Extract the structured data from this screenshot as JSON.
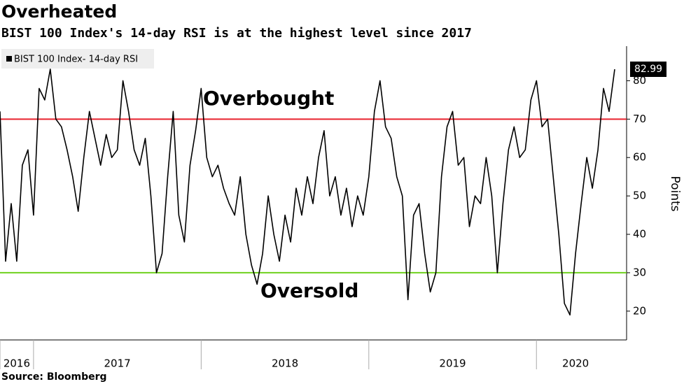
{
  "chart_data": {
    "type": "line",
    "title": "Overheated",
    "subtitle": "BIST 100 Index's 14-day RSI is at the highest level since  2017",
    "source": "Source: Bloomberg",
    "y_label": "Points",
    "categories": [
      "2016",
      null,
      null,
      null,
      null,
      null,
      "2017",
      null,
      null,
      null,
      null,
      null,
      null,
      null,
      null,
      null,
      null,
      null,
      null,
      null,
      null,
      null,
      null,
      null,
      null,
      null,
      null,
      null,
      null,
      null,
      null,
      null,
      null,
      null,
      null,
      null,
      "2018",
      null,
      null,
      null,
      null,
      null,
      null,
      null,
      null,
      null,
      null,
      null,
      null,
      null,
      null,
      null,
      null,
      null,
      null,
      null,
      null,
      null,
      null,
      null,
      null,
      null,
      null,
      null,
      null,
      null,
      "2019",
      null,
      null,
      null,
      null,
      null,
      null,
      null,
      null,
      null,
      null,
      null,
      null,
      null,
      null,
      null,
      null,
      null,
      null,
      null,
      null,
      null,
      null,
      null,
      null,
      null,
      null,
      null,
      null,
      null,
      "2020",
      null,
      null,
      null,
      null,
      null,
      null,
      null,
      null,
      null,
      null,
      null,
      null,
      null,
      null
    ],
    "series": [
      {
        "name": "BIST 100 Index- 14-day RSI",
        "color": "#000000",
        "values": [
          72,
          33,
          48,
          33,
          58,
          62,
          45,
          78,
          75,
          83,
          70,
          68,
          62,
          55,
          46,
          60,
          72,
          65,
          58,
          66,
          60,
          62,
          80,
          72,
          62,
          58,
          65,
          50,
          30,
          35,
          55,
          72,
          45,
          38,
          58,
          67,
          78,
          60,
          55,
          58,
          52,
          48,
          45,
          55,
          40,
          32,
          27,
          35,
          50,
          40,
          33,
          45,
          38,
          52,
          45,
          55,
          48,
          60,
          67,
          50,
          55,
          45,
          52,
          42,
          50,
          45,
          55,
          72,
          80,
          68,
          65,
          55,
          50,
          23,
          45,
          48,
          35,
          25,
          30,
          55,
          68,
          72,
          58,
          60,
          42,
          50,
          48,
          60,
          50,
          30,
          48,
          62,
          68,
          60,
          62,
          75,
          80,
          68,
          70,
          55,
          40,
          22,
          19,
          35,
          48,
          60,
          52,
          62,
          78,
          72,
          82.99
        ]
      }
    ],
    "hlines": [
      {
        "value": 70,
        "color": "#e8222e"
      },
      {
        "value": 30,
        "color": "#6fd11e"
      }
    ],
    "annotations": [
      "Overbought",
      "Oversold"
    ],
    "ylim": [
      12.5,
      89
    ],
    "yticks": [
      20,
      30,
      40,
      50,
      60,
      70,
      80
    ]
  }
}
